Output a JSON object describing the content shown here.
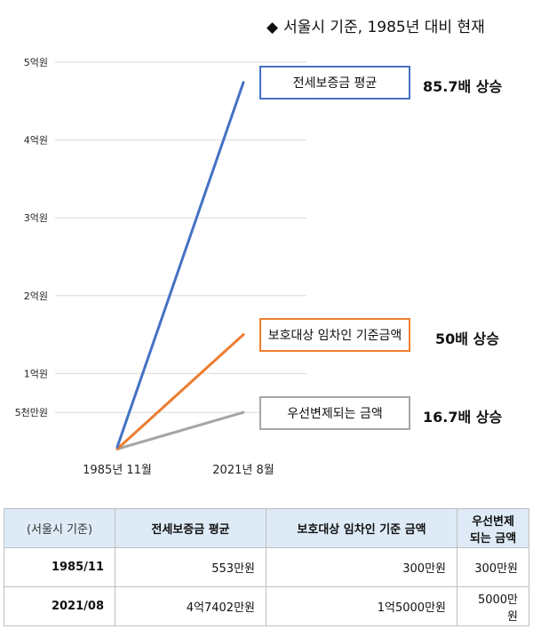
{
  "title": "서울시 기준, 1985년 대비 현재",
  "title_marker": "◆",
  "chart_data": {
    "type": "line",
    "x": [
      "1985년 11월",
      "2021년 8월"
    ],
    "y_ticks": [
      {
        "label": "5억원",
        "value": 50000
      },
      {
        "label": "4억원",
        "value": 40000
      },
      {
        "label": "3억원",
        "value": 30000
      },
      {
        "label": "2억원",
        "value": 20000
      },
      {
        "label": "1억원",
        "value": 10000
      },
      {
        "label": "5천만원",
        "value": 5000
      }
    ],
    "ylim": [
      0,
      50000
    ],
    "unit": "만원",
    "series": [
      {
        "name": "전세보증금 평균",
        "values": [
          553,
          47402
        ],
        "color": "#4472c4",
        "label": "85.7배 상승"
      },
      {
        "name": "보호대상 임차인 기준금액",
        "values": [
          300,
          15000
        ],
        "color": "#ed7d31",
        "label": "50배 상승"
      },
      {
        "name": "우선변제되는 금액",
        "values": [
          300,
          5000
        ],
        "color": "#a5a5a5",
        "label": "16.7배 상승"
      }
    ]
  },
  "table": {
    "headers": [
      "(서울시 기준)",
      "전세보증금 평균",
      "보호대상 임차인 기준 금액",
      "우선변제되는 금액"
    ],
    "rows": [
      [
        "1985/11",
        "553만원",
        "300만원",
        "300만원"
      ],
      [
        "2021/08",
        "4억7402만원",
        "1억5000만원",
        "5000만원"
      ]
    ]
  }
}
